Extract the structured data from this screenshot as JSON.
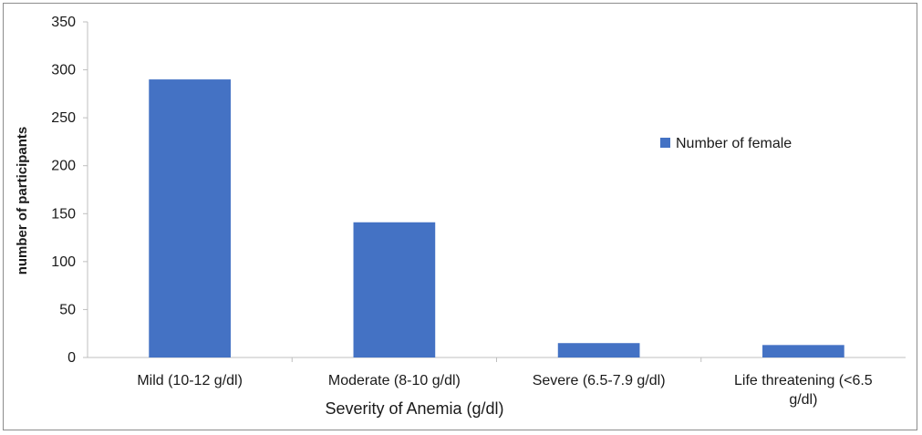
{
  "chart_data": {
    "type": "bar",
    "title": "",
    "xlabel": "Severity of Anemia (g/dl)",
    "ylabel": "number of participants",
    "categories": [
      [
        "Mild (10-12 g/dl)"
      ],
      [
        "Moderate (8-10 g/dl)"
      ],
      [
        "Severe (6.5-7.9 g/dl)"
      ],
      [
        "Life threatening (<6.5",
        "g/dl)"
      ]
    ],
    "series": [
      {
        "name": "Number of female",
        "values": [
          290,
          141,
          15,
          13
        ],
        "color": "#4472c4"
      }
    ],
    "ylim": [
      0,
      350
    ],
    "yticks": [
      0,
      50,
      100,
      150,
      200,
      250,
      300,
      350
    ],
    "grid": false,
    "legend_position": "right"
  }
}
